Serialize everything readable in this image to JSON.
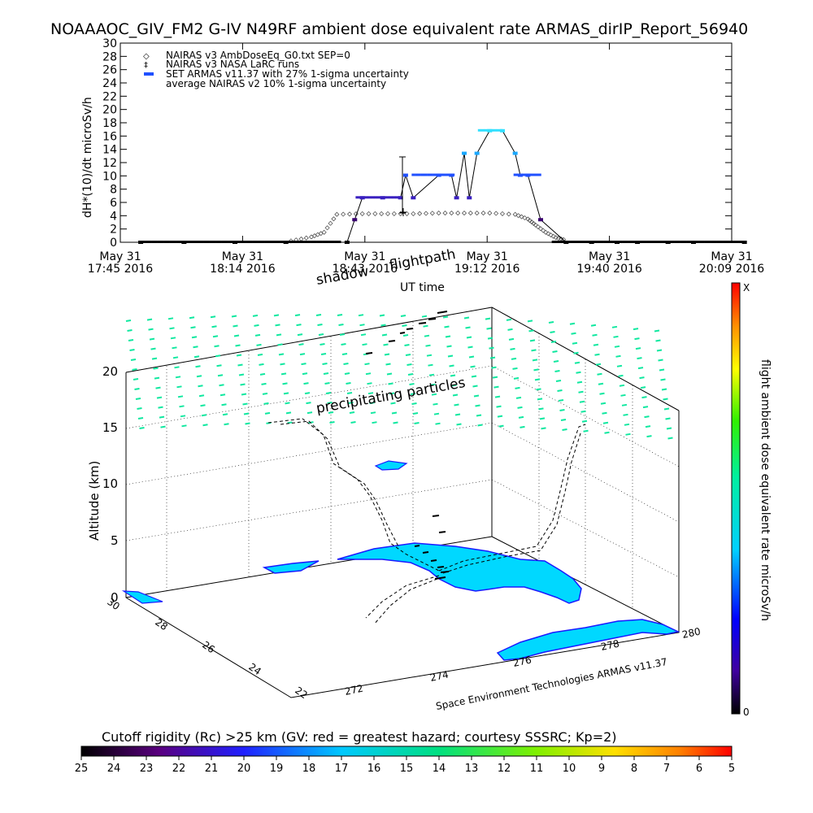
{
  "chart_data": [
    {
      "type": "line",
      "title": "NOAAAOC_GIV_FM2 G-IV    N49RF   ambient dose equivalent rate ARMAS_dirIP_Report_56940",
      "xlabel": "UT time",
      "ylabel": "dH*(10)/dt microSv/h",
      "ylim": [
        0,
        30
      ],
      "yticks": [
        "0",
        "2",
        "4",
        "6",
        "8",
        "10",
        "12",
        "14",
        "16",
        "18",
        "20",
        "22",
        "24",
        "26",
        "28",
        "30"
      ],
      "xticks": [
        {
          "date": "May 31",
          "time": "17:45 2016"
        },
        {
          "date": "May 31",
          "time": "18:14 2016"
        },
        {
          "date": "May 31",
          "time": "18:43 2016"
        },
        {
          "date": "May 31",
          "time": "19:12 2016"
        },
        {
          "date": "May 31",
          "time": "19:40 2016"
        },
        {
          "date": "May 31",
          "time": "20:09 2016"
        }
      ],
      "legend": {
        "position": "top-left",
        "entries": [
          "NAIRAS v3 AmbDoseEq_G0.txt SEP=0",
          "NAIRAS v3 NASA LaRC runs",
          "SET ARMAS v11.37 with 27% 1-sigma uncertainty",
          "average NAIRAS v2 10% 1-sigma uncertainty"
        ]
      },
      "series": [
        {
          "name": "SET ARMAS v11.37 with 27% 1-sigma uncertainty",
          "x_hours": [
            17.83,
            18.0,
            18.2,
            18.4,
            18.64,
            18.67,
            18.7,
            18.78,
            18.85,
            18.87,
            18.9,
            19.0,
            19.05,
            19.07,
            19.1,
            19.12,
            19.15,
            19.2,
            19.25,
            19.3,
            19.32,
            19.35,
            19.4,
            19.5,
            19.6,
            19.7,
            19.78,
            19.9,
            20.0,
            20.2
          ],
          "values": [
            0,
            0,
            0,
            0,
            0,
            3.4,
            6.7,
            6.7,
            6.7,
            10.1,
            6.7,
            10.1,
            10.1,
            6.7,
            13.4,
            6.7,
            13.4,
            16.8,
            16.8,
            13.4,
            10.1,
            10.1,
            3.4,
            0,
            0,
            0,
            0,
            0,
            0,
            0
          ]
        },
        {
          "name": "NAIRAS v3 AmbDoseEq_G0.txt SEP=0",
          "x_hours": [
            18.42,
            18.5,
            18.55,
            18.6,
            18.7,
            18.8,
            18.9,
            19.0,
            19.1,
            19.2,
            19.3,
            19.35,
            19.38,
            19.42,
            19.46,
            19.5
          ],
          "values": [
            0.2,
            0.8,
            1.5,
            4.2,
            4.3,
            4.3,
            4.3,
            4.4,
            4.4,
            4.4,
            4.2,
            3.5,
            2.6,
            1.5,
            0.7,
            0.3
          ]
        }
      ]
    },
    {
      "type": "scatter",
      "subtype": "3d-trajectory",
      "zlabel": "Altitude (km)",
      "zticks": [
        "0",
        "5",
        "10",
        "15",
        "20"
      ],
      "xticks": [
        "272",
        "274",
        "276",
        "278",
        "280"
      ],
      "yticks": [
        "22",
        "24",
        "26",
        "28",
        "30"
      ],
      "annotations": [
        "shadow",
        "flightpath",
        "precipitating particles"
      ],
      "credit": "Space Environment Technologies ARMAS v11.37",
      "colorbar": {
        "label": "flight ambient dose equivalent rate microSv/h",
        "max_label": "X",
        "min_label": "0"
      }
    },
    {
      "type": "heatmap",
      "subtype": "colorbar",
      "title": "Cutoff rigidity (Rc) >25 km (GV: red = greatest hazard; courtesy SSSRC; Kp=2)",
      "ticks": [
        "25",
        "24",
        "23",
        "22",
        "21",
        "20",
        "19",
        "18",
        "17",
        "16",
        "15",
        "14",
        "13",
        "12",
        "11",
        "10",
        "9",
        "8",
        "7",
        "6",
        "5"
      ]
    }
  ]
}
